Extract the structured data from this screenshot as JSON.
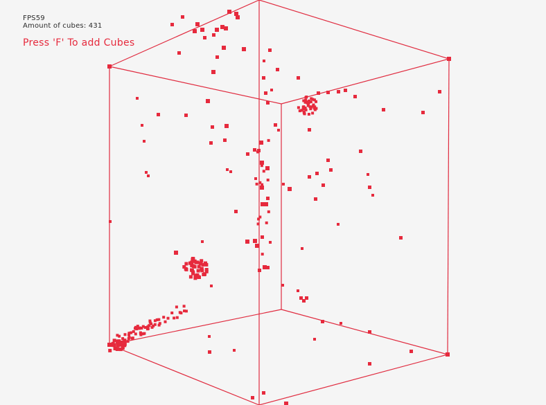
{
  "hud": {
    "fps_text": "FPS59",
    "count_text": "Amount of cubes: 431"
  },
  "hint": {
    "text": "Press 'F' To add Cubes"
  },
  "colors": {
    "background": "#f5f5f5",
    "cube": "#e62a3d",
    "edge": "#e02b3f",
    "hud_text": "#2b2b2b",
    "hint_text": "#e62a3d"
  },
  "scene": {
    "cube_count": 431,
    "container": "wireframe-box"
  }
}
